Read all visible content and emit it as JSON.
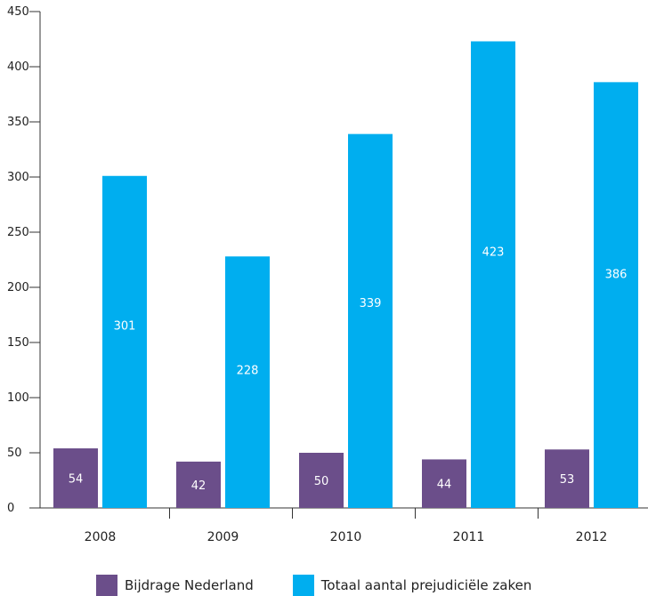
{
  "chart_data": {
    "type": "bar",
    "categories": [
      "2008",
      "2009",
      "2010",
      "2011",
      "2012"
    ],
    "series": [
      {
        "name": "Bijdrage Nederland",
        "values": [
          54,
          42,
          50,
          44,
          53
        ],
        "color": "#6b4e8a"
      },
      {
        "name": "Totaal aantal prejudiciële zaken",
        "values": [
          301,
          228,
          339,
          423,
          386
        ],
        "color": "#00aeef"
      }
    ],
    "y_ticks": [
      "0",
      "50",
      "100",
      "150",
      "200",
      "250",
      "300",
      "350",
      "400",
      "450"
    ],
    "ylim": [
      0,
      450
    ],
    "grid": false,
    "legend_position": "bottom"
  }
}
